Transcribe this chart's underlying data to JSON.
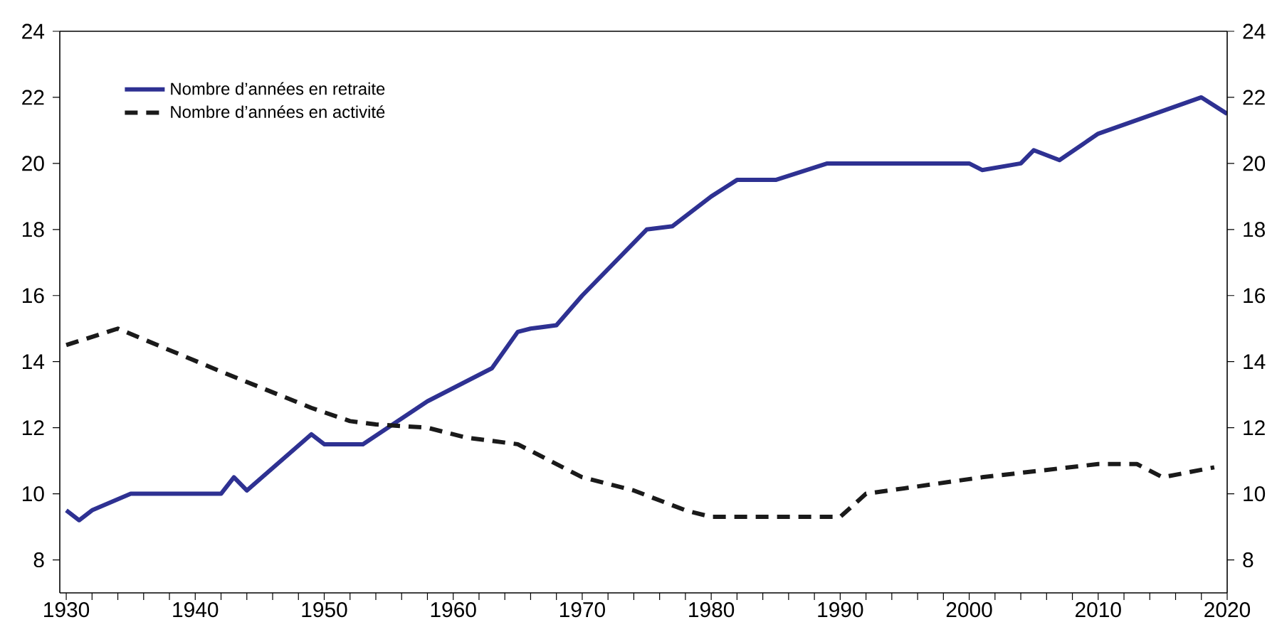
{
  "chart_data": {
    "type": "line",
    "xlim": [
      1929.5,
      2020
    ],
    "ylim": [
      7,
      24
    ],
    "xticks": [
      1930,
      {
        "value": 1932,
        "label": null
      },
      {
        "value": 1934,
        "label": null
      },
      {
        "value": 1936,
        "label": null
      },
      {
        "value": 1938,
        "label": null
      },
      1940,
      {
        "value": 1942,
        "label": null
      },
      {
        "value": 1944,
        "label": null
      },
      {
        "value": 1946,
        "label": null
      },
      {
        "value": 1948,
        "label": null
      },
      1950,
      {
        "value": 1952,
        "label": null
      },
      {
        "value": 1954,
        "label": null
      },
      {
        "value": 1956,
        "label": null
      },
      {
        "value": 1958,
        "label": null
      },
      1960,
      {
        "value": 1962,
        "label": null
      },
      {
        "value": 1964,
        "label": null
      },
      {
        "value": 1966,
        "label": null
      },
      {
        "value": 1968,
        "label": null
      },
      1970,
      {
        "value": 1972,
        "label": null
      },
      {
        "value": 1974,
        "label": null
      },
      {
        "value": 1976,
        "label": null
      },
      {
        "value": 1978,
        "label": null
      },
      1980,
      {
        "value": 1982,
        "label": null
      },
      {
        "value": 1984,
        "label": null
      },
      {
        "value": 1986,
        "label": null
      },
      {
        "value": 1988,
        "label": null
      },
      1990,
      {
        "value": 1992,
        "label": null
      },
      {
        "value": 1994,
        "label": null
      },
      {
        "value": 1996,
        "label": null
      },
      {
        "value": 1998,
        "label": null
      },
      2000,
      {
        "value": 2002,
        "label": null
      },
      {
        "value": 2004,
        "label": null
      },
      {
        "value": 2006,
        "label": null
      },
      {
        "value": 2008,
        "label": null
      },
      2010,
      {
        "value": 2012,
        "label": null
      },
      {
        "value": 2014,
        "label": null
      },
      {
        "value": 2016,
        "label": null
      },
      {
        "value": 2018,
        "label": null
      },
      2020
    ],
    "yticks": [
      8,
      10,
      12,
      14,
      16,
      18,
      20,
      22,
      24
    ],
    "y2lim": [
      7,
      24
    ],
    "y2ticks": [
      8,
      10,
      12,
      14,
      16,
      18,
      20,
      22,
      24
    ],
    "legend": "top left",
    "grid": false,
    "marker": "none",
    "series": [
      {
        "name": "Nombre d’années en retraite",
        "color": "#2e3192",
        "line_style": "solid",
        "x": [
          1930,
          1931,
          1932,
          1935,
          1942,
          1943,
          1944,
          1949,
          1950,
          1953,
          1958,
          1963,
          1965,
          1966,
          1968,
          1970,
          1975,
          1977,
          1980,
          1982,
          1985,
          1989,
          2000,
          2001,
          2004,
          2005,
          2007,
          2010,
          2018,
          2020
        ],
        "values": [
          9.5,
          9.2,
          9.5,
          10,
          10,
          10.5,
          10.1,
          11.8,
          11.5,
          11.5,
          12.8,
          13.8,
          14.9,
          15,
          15.1,
          16,
          18,
          18.1,
          19,
          19.5,
          19.5,
          20,
          20,
          19.8,
          20,
          20.4,
          20.1,
          20.9,
          22,
          21.5
        ]
      },
      {
        "name": "Nombre d’années en activité",
        "color": "#1a1a1a",
        "line_style": "dashed",
        "x": [
          1930,
          1934,
          1942,
          1949,
          1952,
          1954,
          1958,
          1961,
          1965,
          1970,
          1974,
          1978,
          1980,
          1990,
          1992,
          2001,
          2010,
          2013,
          2015,
          2019
        ],
        "values": [
          14.5,
          15,
          13.7,
          12.6,
          12.2,
          12.1,
          12,
          11.7,
          11.5,
          10.5,
          10.1,
          9.5,
          9.3,
          9.3,
          10,
          10.5,
          10.9,
          10.9,
          10.5,
          10.8
        ]
      }
    ]
  }
}
